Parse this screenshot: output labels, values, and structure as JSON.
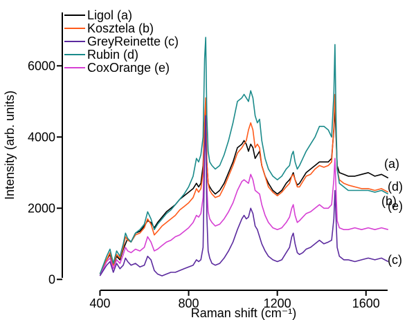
{
  "chart_data": {
    "type": "line",
    "title": "",
    "xlabel": "Raman shift (cm⁻¹)",
    "ylabel": "Intensity (arb. units)",
    "xlim": [
      230,
      1760
    ],
    "ylim": [
      -150,
      7500
    ],
    "xticks": [
      400,
      800,
      1200,
      1600
    ],
    "xtick_labels": [
      "400",
      "800",
      "1200",
      "1600"
    ],
    "yticks": [
      0,
      2000,
      4000,
      6000
    ],
    "ytick_labels": [
      "0",
      "2000",
      "4000",
      "6000"
    ],
    "grid": false,
    "legend_position": "top-left",
    "series": [
      {
        "name": "Ligol (a)",
        "end_label": "(a)",
        "color": "#000000",
        "x": [
          400,
          430,
          445,
          460,
          475,
          490,
          505,
          515,
          525,
          540,
          560,
          580,
          600,
          615,
          630,
          645,
          660,
          680,
          700,
          720,
          740,
          760,
          780,
          800,
          820,
          835,
          845,
          855,
          865,
          872,
          877,
          882,
          888,
          895,
          905,
          920,
          940,
          960,
          980,
          1000,
          1020,
          1040,
          1050,
          1060,
          1070,
          1080,
          1090,
          1100,
          1110,
          1120,
          1130,
          1145,
          1160,
          1180,
          1200,
          1220,
          1240,
          1255,
          1265,
          1272,
          1280,
          1290,
          1300,
          1315,
          1330,
          1350,
          1370,
          1390,
          1410,
          1430,
          1445,
          1455,
          1460,
          1465,
          1470,
          1480,
          1500,
          1520,
          1550,
          1580,
          1610,
          1640,
          1670,
          1700
        ],
        "y": [
          150,
          550,
          700,
          400,
          650,
          550,
          850,
          1000,
          1150,
          1050,
          1300,
          1350,
          1500,
          1650,
          1600,
          1450,
          1600,
          1750,
          1900,
          2000,
          2100,
          2250,
          2350,
          2450,
          2550,
          2700,
          2600,
          2700,
          3200,
          4400,
          4700,
          3300,
          2700,
          2600,
          2500,
          2400,
          2500,
          2700,
          3000,
          3300,
          3700,
          3800,
          3900,
          3800,
          3600,
          3800,
          3700,
          3400,
          3500,
          3600,
          3200,
          2900,
          2700,
          2500,
          2400,
          2500,
          2700,
          2800,
          2900,
          3000,
          2800,
          2650,
          2700,
          2850,
          3000,
          3100,
          3200,
          3300,
          3300,
          3300,
          3400,
          4200,
          4800,
          4000,
          3200,
          3000,
          2950,
          2900,
          2900,
          2950,
          3000,
          2900,
          2950,
          2850
        ]
      },
      {
        "name": "Kosztela (b)",
        "end_label": "(b)",
        "color": "#ff5a1a",
        "x": [
          400,
          430,
          445,
          460,
          475,
          490,
          505,
          515,
          525,
          540,
          560,
          580,
          600,
          615,
          630,
          645,
          660,
          680,
          700,
          720,
          740,
          760,
          780,
          800,
          820,
          835,
          845,
          855,
          865,
          872,
          877,
          882,
          888,
          895,
          905,
          920,
          940,
          960,
          980,
          1000,
          1020,
          1040,
          1050,
          1060,
          1070,
          1080,
          1090,
          1100,
          1110,
          1120,
          1130,
          1145,
          1160,
          1180,
          1200,
          1220,
          1240,
          1255,
          1265,
          1272,
          1280,
          1290,
          1300,
          1315,
          1330,
          1350,
          1370,
          1390,
          1410,
          1430,
          1445,
          1455,
          1460,
          1465,
          1470,
          1480,
          1500,
          1520,
          1550,
          1580,
          1610,
          1640,
          1670,
          1700
        ],
        "y": [
          150,
          550,
          750,
          400,
          700,
          600,
          900,
          1200,
          1100,
          1050,
          1250,
          1300,
          1450,
          1700,
          1550,
          1250,
          1350,
          1500,
          1600,
          1700,
          1800,
          1950,
          2050,
          2150,
          2300,
          2550,
          2450,
          2550,
          3000,
          4500,
          5100,
          3300,
          2700,
          2500,
          2400,
          2300,
          2350,
          2600,
          2900,
          3200,
          3550,
          3700,
          3800,
          3900,
          4200,
          4400,
          4200,
          3700,
          3800,
          3700,
          3200,
          2900,
          2600,
          2450,
          2350,
          2450,
          2600,
          2700,
          2900,
          2950,
          2800,
          2600,
          2600,
          2750,
          2900,
          2950,
          3100,
          3200,
          3150,
          3200,
          3300,
          4300,
          5200,
          4200,
          3100,
          2800,
          2700,
          2650,
          2600,
          2550,
          2550,
          2500,
          2550,
          2450
        ]
      },
      {
        "name": "GreyReinette (c)",
        "end_label": "(c)",
        "color": "#5b2a9e",
        "x": [
          400,
          430,
          445,
          460,
          475,
          490,
          505,
          515,
          525,
          540,
          560,
          580,
          600,
          615,
          630,
          645,
          660,
          680,
          700,
          720,
          740,
          760,
          780,
          800,
          820,
          835,
          845,
          855,
          865,
          872,
          877,
          882,
          888,
          895,
          905,
          920,
          940,
          960,
          980,
          1000,
          1020,
          1040,
          1050,
          1060,
          1070,
          1080,
          1090,
          1100,
          1110,
          1120,
          1130,
          1145,
          1160,
          1180,
          1200,
          1220,
          1240,
          1255,
          1265,
          1272,
          1280,
          1290,
          1300,
          1315,
          1330,
          1350,
          1370,
          1390,
          1410,
          1430,
          1445,
          1455,
          1460,
          1465,
          1470,
          1480,
          1500,
          1520,
          1550,
          1580,
          1610,
          1640,
          1670,
          1700
        ],
        "y": [
          100,
          400,
          500,
          200,
          450,
          300,
          400,
          600,
          500,
          400,
          450,
          350,
          400,
          650,
          550,
          250,
          150,
          100,
          150,
          200,
          200,
          250,
          300,
          350,
          400,
          550,
          500,
          550,
          900,
          3500,
          4600,
          1800,
          800,
          600,
          450,
          400,
          450,
          600,
          800,
          1050,
          1400,
          1700,
          1800,
          1700,
          1750,
          2000,
          1850,
          1500,
          1400,
          1200,
          1000,
          800,
          650,
          550,
          500,
          550,
          750,
          900,
          1200,
          1300,
          1000,
          750,
          700,
          750,
          850,
          900,
          1000,
          1100,
          1000,
          1050,
          1100,
          1700,
          2500,
          1700,
          900,
          650,
          550,
          550,
          500,
          550,
          600,
          550,
          600,
          500
        ]
      },
      {
        "name": "Rubin (d)",
        "end_label": "(d)",
        "color": "#1a8a8a",
        "x": [
          400,
          430,
          445,
          460,
          475,
          490,
          505,
          515,
          525,
          540,
          560,
          580,
          600,
          615,
          630,
          645,
          660,
          680,
          700,
          720,
          740,
          760,
          780,
          800,
          820,
          835,
          845,
          855,
          865,
          872,
          877,
          882,
          888,
          895,
          905,
          920,
          940,
          960,
          980,
          1000,
          1020,
          1040,
          1050,
          1060,
          1070,
          1080,
          1090,
          1100,
          1110,
          1120,
          1130,
          1145,
          1160,
          1180,
          1200,
          1220,
          1240,
          1255,
          1265,
          1272,
          1280,
          1290,
          1300,
          1315,
          1330,
          1350,
          1370,
          1390,
          1410,
          1430,
          1445,
          1455,
          1460,
          1465,
          1470,
          1480,
          1500,
          1520,
          1550,
          1580,
          1610,
          1640,
          1670,
          1700
        ],
        "y": [
          150,
          650,
          850,
          450,
          800,
          650,
          1000,
          1300,
          1150,
          1050,
          1300,
          1400,
          1550,
          1900,
          1700,
          1400,
          1550,
          1700,
          1850,
          1950,
          2100,
          2250,
          2400,
          2600,
          2900,
          3400,
          3300,
          3500,
          4000,
          6200,
          6800,
          4600,
          3600,
          3300,
          3200,
          3100,
          3200,
          3500,
          3900,
          4400,
          5000,
          5100,
          5200,
          5100,
          5000,
          5300,
          5100,
          4600,
          4400,
          4500,
          3900,
          3400,
          3100,
          2900,
          2800,
          2900,
          3100,
          3200,
          3500,
          3600,
          3300,
          3100,
          3200,
          3400,
          3600,
          3800,
          4000,
          4300,
          4300,
          4200,
          4000,
          5200,
          6600,
          4500,
          3100,
          2700,
          2600,
          2500,
          2500,
          2500,
          2500,
          2450,
          2500,
          2400
        ]
      },
      {
        "name": "CoxOrange (e)",
        "end_label": "(e)",
        "color": "#d63fd3",
        "x": [
          400,
          430,
          445,
          460,
          475,
          490,
          505,
          515,
          525,
          540,
          560,
          580,
          600,
          615,
          630,
          645,
          660,
          680,
          700,
          720,
          740,
          760,
          780,
          800,
          820,
          835,
          845,
          855,
          865,
          872,
          877,
          882,
          888,
          895,
          905,
          920,
          940,
          960,
          980,
          1000,
          1020,
          1040,
          1050,
          1060,
          1070,
          1080,
          1090,
          1100,
          1110,
          1120,
          1130,
          1145,
          1160,
          1180,
          1200,
          1220,
          1240,
          1255,
          1265,
          1272,
          1280,
          1290,
          1300,
          1315,
          1330,
          1350,
          1370,
          1390,
          1410,
          1430,
          1445,
          1455,
          1460,
          1465,
          1470,
          1480,
          1500,
          1520,
          1550,
          1580,
          1610,
          1640,
          1670,
          1700
        ],
        "y": [
          100,
          500,
          600,
          300,
          550,
          450,
          700,
          900,
          800,
          750,
          850,
          800,
          900,
          1200,
          1050,
          800,
          850,
          950,
          1050,
          1100,
          1200,
          1250,
          1350,
          1450,
          1600,
          1800,
          1750,
          1850,
          2300,
          3700,
          4000,
          2600,
          1900,
          1700,
          1600,
          1500,
          1550,
          1700,
          1900,
          2150,
          2500,
          2750,
          2800,
          2750,
          2700,
          2950,
          2800,
          2500,
          2450,
          2400,
          2100,
          1800,
          1600,
          1450,
          1400,
          1450,
          1600,
          1750,
          2000,
          2100,
          1800,
          1600,
          1650,
          1750,
          1850,
          1900,
          2000,
          2100,
          2000,
          2000,
          2100,
          2800,
          3400,
          2500,
          1650,
          1450,
          1400,
          1400,
          1450,
          1400,
          1450,
          1400,
          1450,
          1400
        ]
      }
    ]
  }
}
